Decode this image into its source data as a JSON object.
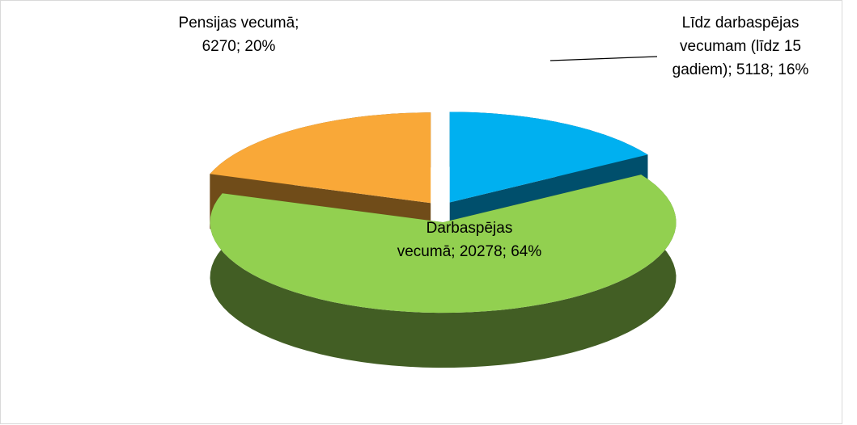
{
  "chart_data": {
    "type": "pie3d",
    "categories": [
      "Līdz darbaspējas vecumam (līdz 15 gadiem)",
      "Darbaspējas vecumā",
      "Pensijas vecumā"
    ],
    "values": [
      5118,
      20278,
      6270
    ],
    "value_labels": [
      "16%",
      "64%",
      "20%"
    ],
    "separator": "; ",
    "colors": [
      "#00b0f0",
      "#92d050",
      "#f9a838"
    ]
  }
}
